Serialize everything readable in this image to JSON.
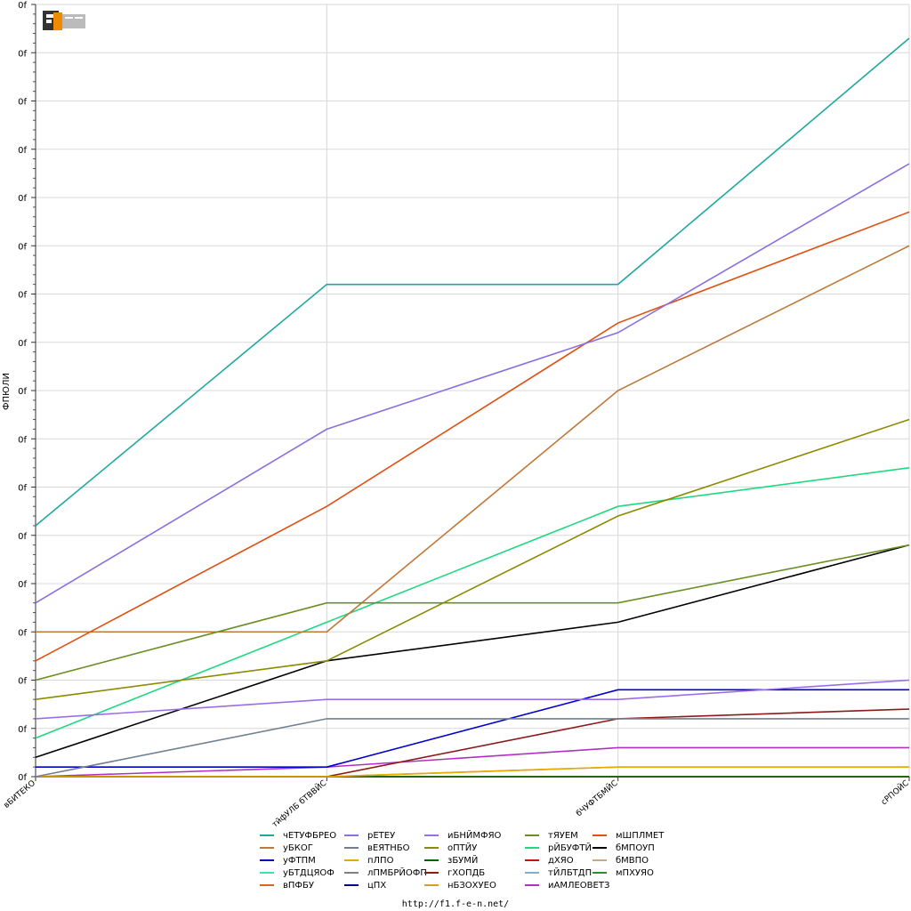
{
  "footer": {
    "url": "http://f1.f-e-n.net/"
  },
  "logo": {
    "text": "F1FEN"
  },
  "chart_data": {
    "type": "line",
    "ylabel": "ФПЮЛИ",
    "ytick_label": "0f",
    "ytick_count": 16,
    "ylim": [
      0,
      16
    ],
    "grid": true,
    "legend_position": "bottom",
    "categories": [
      "вБИТЕКО",
      "тйфУЛБ бТВВЙС",
      "бЧУФТБМЙС",
      "сРПОЙС"
    ],
    "series": [
      {
        "name": "чЕТУФБРЕО",
        "color": "#20a8a0",
        "values": [
          5.2,
          10.2,
          10.2,
          15.3
        ]
      },
      {
        "name": "рЕТЕУ",
        "color": "#8a70e0",
        "values": [
          3.6,
          7.2,
          9.2,
          12.7
        ]
      },
      {
        "name": "иБНЙМФЯО",
        "color": "#9a6ee8",
        "values": [
          1.2,
          1.6,
          1.6,
          2.0
        ]
      },
      {
        "name": "тЯУЕМ",
        "color": "#6b8e23",
        "values": [
          2.0,
          3.6,
          3.6,
          4.8
        ]
      },
      {
        "name": "мШПЛМЕТ",
        "color": "#e05010",
        "values": [
          2.4,
          5.6,
          9.4,
          11.7
        ]
      },
      {
        "name": "уБКОГ",
        "color": "#c07838",
        "values": [
          3.0,
          3.0,
          8.0,
          11.0
        ]
      },
      {
        "name": "вЕЯТНБО",
        "color": "#708090",
        "values": [
          0.0,
          1.2,
          1.2,
          1.2
        ]
      },
      {
        "name": "оПТЙУ",
        "color": "#8b8b00",
        "values": [
          1.6,
          2.4,
          5.4,
          7.4
        ]
      },
      {
        "name": "рЙБУФТЙ",
        "color": "#20d880",
        "values": [
          0.8,
          3.2,
          5.6,
          6.4
        ]
      },
      {
        "name": "бМПОУП",
        "color": "#000000",
        "values": [
          0.4,
          2.4,
          3.2,
          4.8
        ]
      },
      {
        "name": "уФТПМ",
        "color": "#0000cc",
        "values": [
          0.2,
          0.2,
          1.8,
          1.8
        ]
      },
      {
        "name": "пЛПО",
        "color": "#e8a800",
        "values": [
          0.0,
          0.0,
          0.2,
          0.2
        ]
      },
      {
        "name": "зБУМЙ",
        "color": "#006400",
        "values": [
          0.0,
          0.0,
          0.0,
          0.0
        ]
      },
      {
        "name": "дХЯО",
        "color": "#cc1010",
        "values": [
          0.0,
          0.0,
          0.0,
          0.0
        ]
      },
      {
        "name": "бМВПО",
        "color": "#c8a880",
        "values": [
          0.0,
          0.0,
          0.0,
          0.0
        ]
      },
      {
        "name": "уБТДЦЯОФ",
        "color": "#40e0b0",
        "values": [
          0.0,
          0.0,
          0.0,
          0.0
        ]
      },
      {
        "name": "лПМБРЙОФП",
        "color": "#808080",
        "values": [
          0.0,
          0.0,
          0.0,
          0.0
        ]
      },
      {
        "name": "гХОПДБ",
        "color": "#8b1a1a",
        "values": [
          0.0,
          0.0,
          1.2,
          1.4
        ]
      },
      {
        "name": "тЙЛБТДП",
        "color": "#80b0c8",
        "values": [
          0.0,
          0.0,
          0.0,
          0.0
        ]
      },
      {
        "name": "мПХУЯО",
        "color": "#2e8b2e",
        "values": [
          0.0,
          0.0,
          0.0,
          0.0
        ]
      },
      {
        "name": "вПФБУ",
        "color": "#d2691e",
        "values": [
          0.0,
          0.0,
          0.0,
          0.0
        ]
      },
      {
        "name": "цПХ",
        "color": "#000080",
        "values": [
          0.0,
          0.0,
          0.0,
          0.0
        ]
      },
      {
        "name": "нБЗОХУЕО",
        "color": "#d4a020",
        "values": [
          0.0,
          0.0,
          0.2,
          0.2
        ]
      },
      {
        "name": "иАМЛЕОВЕТЗ",
        "color": "#b030c0",
        "values": [
          0.0,
          0.2,
          0.6,
          0.6
        ]
      }
    ]
  }
}
